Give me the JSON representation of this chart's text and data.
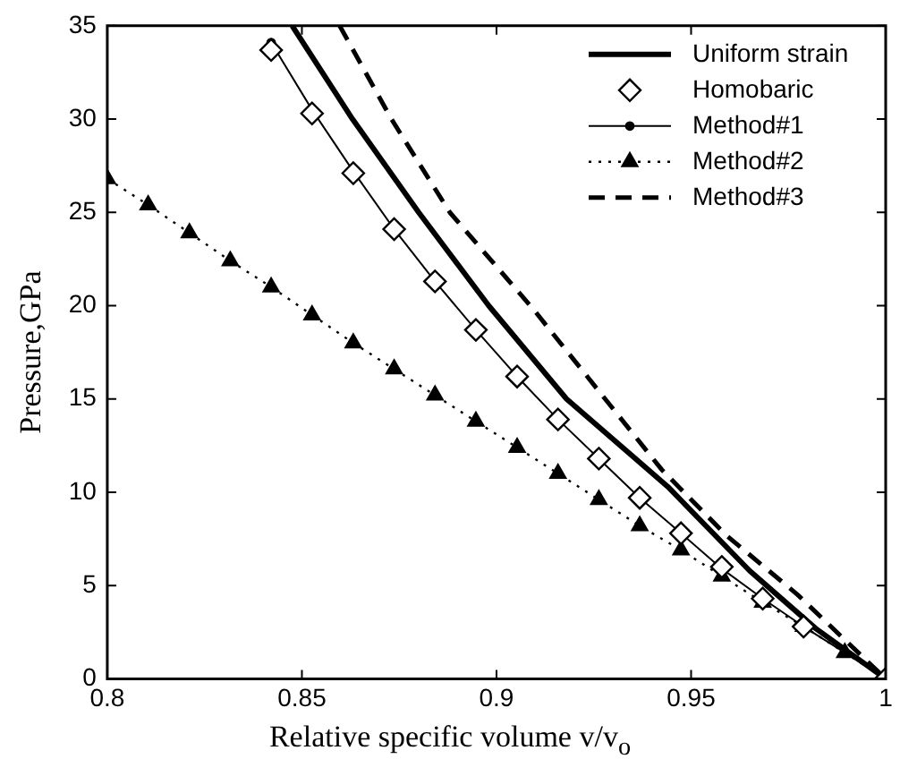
{
  "chart_data": {
    "type": "line",
    "xlabel": "Relative specific volume v/v$_{o}$",
    "ylabel": "Pressure,GPa",
    "xlim": [
      0.8,
      1
    ],
    "xticks": [
      0.8,
      0.85,
      0.9,
      0.95,
      1
    ],
    "ylim": [
      0,
      35
    ],
    "yticks": [
      0,
      5,
      10,
      15,
      20,
      25,
      30,
      35
    ],
    "grid": false,
    "legend": "top right",
    "series": [
      {
        "name": "Uniform strain",
        "color": "#000000",
        "line_style": "solid",
        "marker": "none",
        "x": [
          0.8475,
          0.863,
          0.88,
          0.898,
          0.918,
          0.944,
          0.965,
          0.982,
          1.0
        ],
        "values": [
          35,
          30,
          25,
          20,
          15,
          10.3,
          5.8,
          2.7,
          0
        ]
      },
      {
        "name": "Homobaric",
        "type": "scatter",
        "color": "#000000",
        "marker": "diamond",
        "x": [
          0.8421,
          0.8526,
          0.8632,
          0.8737,
          0.8842,
          0.8947,
          0.9053,
          0.9158,
          0.9263,
          0.9368,
          0.9474,
          0.9579,
          0.9684,
          0.9789,
          0.9895,
          1.0
        ],
        "values": [
          33.7,
          30.3,
          27.1,
          24.1,
          21.3,
          18.7,
          16.2,
          13.9,
          11.8,
          9.7,
          7.8,
          6.0,
          4.3,
          2.8,
          null,
          0
        ]
      },
      {
        "name": "Method#1",
        "color": "#000000",
        "line_style": "solid",
        "marker": "circle",
        "x": [
          0.8421,
          0.8526,
          0.8632,
          0.8737,
          0.8842,
          0.8947,
          0.9053,
          0.9158,
          0.9263,
          0.9368,
          0.9474,
          0.9579,
          0.9684,
          0.9789,
          0.9895,
          1.0
        ],
        "values": [
          34.1,
          30.5,
          27.2,
          24.1,
          21.3,
          18.7,
          16.2,
          13.9,
          11.8,
          9.7,
          7.8,
          5.9,
          4.3,
          2.8,
          1.4,
          0
        ]
      },
      {
        "name": "Method#2",
        "color": "#000000",
        "line_style": "dotted",
        "marker": "triangle",
        "x": [
          0.8,
          0.8105,
          0.8211,
          0.8316,
          0.8421,
          0.8526,
          0.8632,
          0.8737,
          0.8842,
          0.8947,
          0.9053,
          0.9158,
          0.9263,
          0.9368,
          0.9474,
          0.9579,
          0.9684,
          0.9789,
          0.9895,
          1.0
        ],
        "values": [
          26.8,
          25.4,
          23.9,
          22.4,
          21.0,
          19.5,
          18.0,
          16.6,
          15.2,
          13.8,
          12.4,
          11.0,
          9.6,
          8.2,
          6.9,
          5.5,
          4.1,
          2.8,
          1.4,
          0
        ]
      },
      {
        "name": "Method#3",
        "color": "#000000",
        "line_style": "dashed",
        "marker": "none",
        "x": [
          0.8597,
          0.873,
          0.888,
          0.9095,
          0.9425,
          0.959,
          0.9774,
          1.0
        ],
        "values": [
          35,
          30,
          25,
          19.8,
          11.2,
          7.7,
          4.5,
          0
        ]
      }
    ]
  }
}
